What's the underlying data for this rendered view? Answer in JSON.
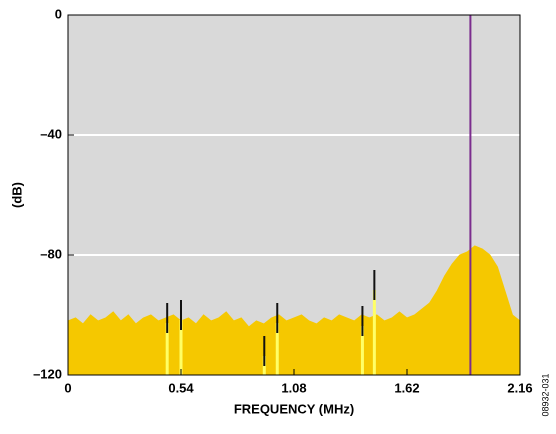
{
  "chart_data": {
    "type": "spectrum",
    "xlabel": "FREQUENCY (MHz)",
    "ylabel": "(dB)",
    "annotation": "08932-031",
    "xlim": [
      0,
      2.16
    ],
    "xticks": [
      0,
      0.54,
      1.08,
      1.62,
      2.16
    ],
    "ylim": [
      -120,
      0
    ],
    "yticks": [
      0,
      {
        "value": -40,
        "label": "–40"
      },
      {
        "value": -80,
        "label": "–80"
      },
      {
        "value": -120,
        "label": "–120"
      }
    ],
    "grid": true,
    "series": [
      {
        "style": "area",
        "color": "#f5c800",
        "x": [
          0,
          0.036,
          0.072,
          0.108,
          0.144,
          0.18,
          0.216,
          0.252,
          0.288,
          0.324,
          0.36,
          0.396,
          0.432,
          0.468,
          0.504,
          0.54,
          0.576,
          0.612,
          0.648,
          0.684,
          0.72,
          0.756,
          0.792,
          0.828,
          0.864,
          0.9,
          0.936,
          0.972,
          1.008,
          1.044,
          1.08,
          1.116,
          1.152,
          1.188,
          1.224,
          1.26,
          1.296,
          1.332,
          1.368,
          1.404,
          1.44,
          1.476,
          1.512,
          1.548,
          1.584,
          1.62,
          1.656,
          1.692,
          1.728,
          1.764,
          1.8,
          1.836,
          1.872,
          1.908,
          1.944,
          1.98,
          2.016,
          2.052,
          2.088,
          2.124,
          2.16
        ],
        "values": [
          -102,
          -101,
          -103,
          -100,
          -102,
          -101,
          -99,
          -102,
          -100,
          -103,
          -101,
          -100,
          -102,
          -101,
          -100,
          -102,
          -101,
          -103,
          -100,
          -102,
          -101,
          -99,
          -102,
          -101,
          -104,
          -102,
          -103,
          -101,
          -100,
          -102,
          -101,
          -100,
          -102,
          -103,
          -101,
          -102,
          -100,
          -101,
          -102,
          -100,
          -101,
          -100,
          -102,
          -101,
          -99,
          -101,
          -100,
          -98,
          -96,
          -92,
          -87,
          -83,
          -80,
          -79,
          -77,
          -78,
          -80,
          -84,
          -92,
          -100,
          -102
        ]
      },
      {
        "style": "spike",
        "color": "#7b2d8e",
        "x": [
          1.923
        ],
        "values": [
          0
        ]
      },
      {
        "style": "spur",
        "color": "#111111",
        "x": [
          0.474,
          0.54,
          0.938,
          1.0,
          1.407,
          1.464
        ],
        "values": [
          -96,
          -95,
          -107,
          -96,
          -97,
          -85
        ]
      }
    ]
  }
}
